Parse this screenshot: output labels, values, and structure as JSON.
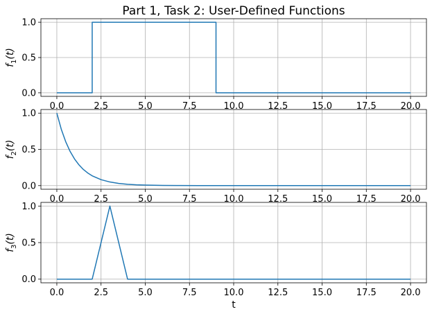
{
  "figure": {
    "title": "Part 1, Task 2: User-Defined Functions",
    "xlabel": "t"
  },
  "colors": {
    "line": "#1f77b4",
    "grid": "#b0b0b0"
  },
  "chart_data": [
    {
      "type": "line",
      "ylabel_main": "f",
      "ylabel_sub": "1",
      "ylabel_tail": "(t)",
      "xlim": [
        -0.9,
        20.9
      ],
      "ylim": [
        -0.05,
        1.05
      ],
      "xticks": [
        0,
        2.5,
        5,
        7.5,
        10,
        12.5,
        15,
        17.5,
        20
      ],
      "xtick_labels": [
        "0.0",
        "2.5",
        "5.0",
        "7.5",
        "10.0",
        "12.5",
        "15.0",
        "17.5",
        "20.0"
      ],
      "yticks": [
        0,
        0.5,
        1
      ],
      "ytick_labels": [
        "0.0",
        "0.5",
        "1.0"
      ],
      "grid": true,
      "x": [
        0,
        2,
        2,
        9,
        9,
        20
      ],
      "y": [
        0,
        0,
        1,
        1,
        0,
        0
      ]
    },
    {
      "type": "line",
      "ylabel_main": "f",
      "ylabel_sub": "2",
      "ylabel_tail": "(t)",
      "xlim": [
        -0.9,
        20.9
      ],
      "ylim": [
        -0.05,
        1.05
      ],
      "xticks": [
        0,
        2.5,
        5,
        7.5,
        10,
        12.5,
        15,
        17.5,
        20
      ],
      "xtick_labels": [
        "0.0",
        "2.5",
        "5.0",
        "7.5",
        "10.0",
        "12.5",
        "15.0",
        "17.5",
        "20.0"
      ],
      "yticks": [
        0,
        0.5,
        1
      ],
      "ytick_labels": [
        "0.0",
        "0.5",
        "1.0"
      ],
      "grid": true,
      "x": [
        0,
        0.25,
        0.5,
        0.75,
        1,
        1.25,
        1.5,
        1.75,
        2,
        2.5,
        3,
        3.5,
        4,
        4.5,
        5,
        6,
        7,
        8,
        10,
        12,
        15,
        20
      ],
      "y": [
        1.0,
        0.779,
        0.607,
        0.472,
        0.368,
        0.287,
        0.223,
        0.174,
        0.135,
        0.082,
        0.05,
        0.03,
        0.018,
        0.011,
        0.007,
        0.002,
        0.001,
        0.0,
        0.0,
        0.0,
        0.0,
        0.0
      ]
    },
    {
      "type": "line",
      "ylabel_main": "f",
      "ylabel_sub": "3",
      "ylabel_tail": "(t)",
      "xlim": [
        -0.9,
        20.9
      ],
      "ylim": [
        -0.05,
        1.05
      ],
      "xticks": [
        0,
        2.5,
        5,
        7.5,
        10,
        12.5,
        15,
        17.5,
        20
      ],
      "xtick_labels": [
        "0.0",
        "2.5",
        "5.0",
        "7.5",
        "10.0",
        "12.5",
        "15.0",
        "17.5",
        "20.0"
      ],
      "yticks": [
        0,
        0.5,
        1
      ],
      "ytick_labels": [
        "0.0",
        "0.5",
        "1.0"
      ],
      "grid": true,
      "x": [
        0,
        2,
        3,
        4,
        20
      ],
      "y": [
        0,
        0,
        1,
        0,
        0
      ]
    }
  ]
}
